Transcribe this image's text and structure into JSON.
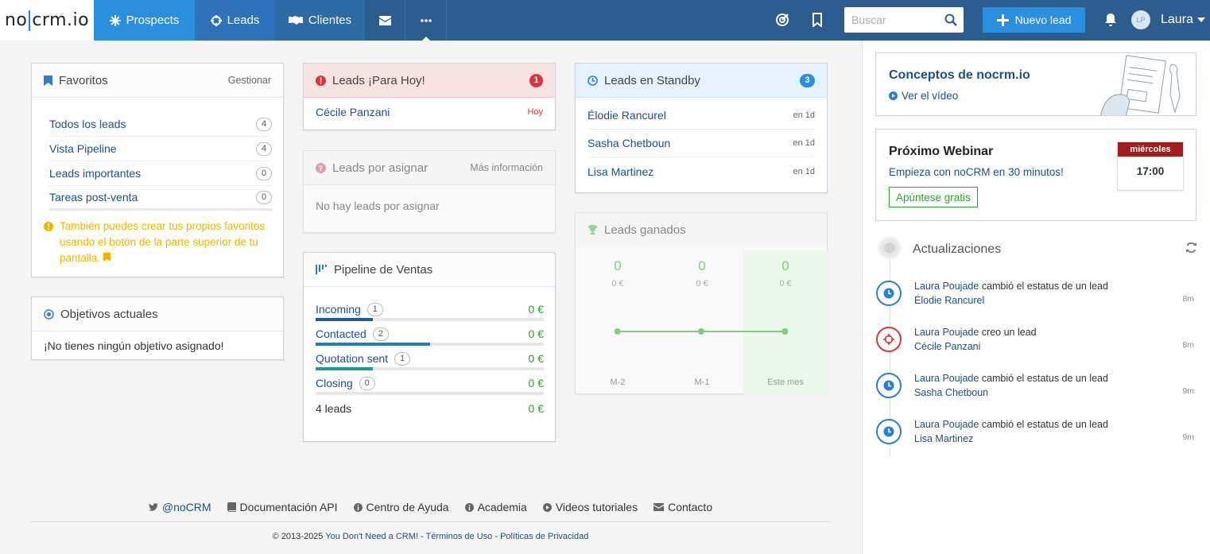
{
  "brand": {
    "logo_left": "no",
    "logo_right": "crm.io"
  },
  "nav": {
    "prospects": "Prospects",
    "leads": "Leads",
    "clientes": "Clientes"
  },
  "search": {
    "placeholder": "Buscar"
  },
  "new_lead": "Nuevo lead",
  "user": {
    "initials": "LP",
    "name": "Laura"
  },
  "favoritos": {
    "title": "Favoritos",
    "manage": "Gestionar",
    "items": [
      {
        "label": "Todos los leads",
        "count": "4"
      },
      {
        "label": "Vista Pipeline",
        "count": "4"
      },
      {
        "label": "Leads importantes",
        "count": "0"
      },
      {
        "label": "Tareas post-venta",
        "count": "0"
      }
    ],
    "note": "También puedes crear tus propios favoritos usando el botón de la parte superior de tu pantalla."
  },
  "objetivos": {
    "title": "Objetivos actuales",
    "empty": "¡No tienes ningún objetivo asignado!"
  },
  "today": {
    "title": "Leads ¡Para Hoy!",
    "badge": "1",
    "rows": [
      {
        "name": "Cécile Panzani",
        "tag": "Hoy"
      }
    ]
  },
  "unassigned": {
    "title": "Leads por asignar",
    "more": "Más información",
    "empty": "No hay leads por asignar"
  },
  "pipeline": {
    "title": "Pipeline de Ventas",
    "stages": [
      {
        "name": "Incoming",
        "count": "1",
        "value": "0 €",
        "progress": 0.25,
        "color": "#1f5f99"
      },
      {
        "name": "Contacted",
        "count": "2",
        "value": "0 €",
        "progress": 0.5,
        "color": "#1e7fc2"
      },
      {
        "name": "Quotation sent",
        "count": "1",
        "value": "0 €",
        "progress": 0.25,
        "color": "#1a9aa0"
      },
      {
        "name": "Closing",
        "count": "0",
        "value": "0 €",
        "progress": 0.0,
        "color": "#2aa52a"
      }
    ],
    "total_label": "4 leads",
    "total_value": "0 €"
  },
  "standby": {
    "title": "Leads en Standby",
    "badge": "3",
    "rows": [
      {
        "name": "Élodie Rancurel",
        "tag": "en 1d"
      },
      {
        "name": "Sasha Chetboun",
        "tag": "en 1d"
      },
      {
        "name": "Lisa Martinez",
        "tag": "en 1d"
      }
    ]
  },
  "won": {
    "title": "Leads ganados",
    "chart_data": {
      "type": "line",
      "categories": [
        "M-2",
        "M-1",
        "Este mes"
      ],
      "values": [
        0,
        0,
        0
      ],
      "value_labels": [
        "0",
        "0",
        "0"
      ],
      "amounts": [
        "0 €",
        "0 €",
        "0 €"
      ]
    }
  },
  "concepts": {
    "title": "Conceptos de nocrm.io",
    "video": "Ver el vídeo"
  },
  "webinar": {
    "title": "Próximo Webinar",
    "subtitle": "Empieza con noCRM en 30 minutos!",
    "cta": "Apúntese gratis",
    "day": "miércoles",
    "time": "17:00"
  },
  "updates": {
    "title": "Actualizaciones",
    "items": [
      {
        "user": "Laura Poujade",
        "action": "cambió el estatus de un lead",
        "lead": "Élodie Rancurel",
        "time": "8m",
        "icon": "clock-icon"
      },
      {
        "user": "Laura Poujade",
        "action": "creo un lead",
        "lead": "Cécile Panzani",
        "time": "8m",
        "icon": "crosshair-icon"
      },
      {
        "user": "Laura Poujade",
        "action": "cambió el estatus de un lead",
        "lead": "Sasha Chetboun",
        "time": "9m",
        "icon": "clock-icon"
      },
      {
        "user": "Laura Poujade",
        "action": "cambió el estatus de un lead",
        "lead": "Lisa Martinez",
        "time": "9m",
        "icon": "clock-icon"
      }
    ]
  },
  "footer": {
    "twitter": "@noCRM",
    "api": "Documentación API",
    "help": "Centro de Ayuda",
    "academy": "Academia",
    "videos": "Videos tutoriales",
    "contact": "Contacto",
    "copy_prefix": "© 2013-2025",
    "copy_link1": "You Don't Need a CRM!",
    "copy_link2": "Términos de Uso",
    "copy_link3": "Políticas de Privacidad"
  }
}
